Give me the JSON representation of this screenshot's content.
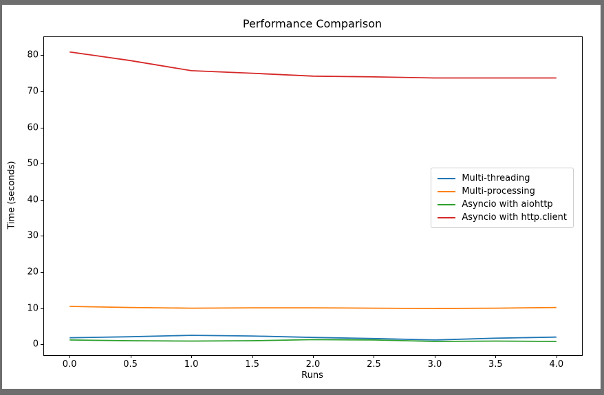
{
  "figure": {
    "background": "#ffffff",
    "frame_color": "#6e6e6e",
    "spine_color": "#000000"
  },
  "chart_data": {
    "type": "line",
    "title": "Performance Comparison",
    "xlabel": "Runs",
    "ylabel": "Time (seconds)",
    "grid": false,
    "legend_position": "center right",
    "xlim": [
      -0.21,
      4.21
    ],
    "ylim": [
      -3,
      85
    ],
    "xticks": {
      "values": [
        0,
        0.5,
        1,
        1.5,
        2,
        2.5,
        3,
        3.5,
        4
      ],
      "labels": [
        "0.0",
        "0.5",
        "1.0",
        "1.5",
        "2.0",
        "2.5",
        "3.0",
        "3.5",
        "4.0"
      ]
    },
    "yticks": {
      "values": [
        0,
        10,
        20,
        30,
        40,
        50,
        60,
        70,
        80
      ],
      "labels": [
        "0",
        "10",
        "20",
        "30",
        "40",
        "50",
        "60",
        "70",
        "80"
      ]
    },
    "x": [
      0.0,
      0.5,
      1.0,
      1.5,
      2.0,
      2.5,
      3.0,
      3.5,
      4.0
    ],
    "series": [
      {
        "name": "Multi-threading",
        "color": "#1f77b4",
        "values": [
          1.8,
          2.1,
          2.5,
          2.3,
          1.9,
          1.6,
          1.2,
          1.7,
          2.0
        ]
      },
      {
        "name": "Multi-processing",
        "color": "#ff7f0e",
        "values": [
          10.5,
          10.2,
          10.0,
          10.1,
          10.1,
          10.0,
          9.9,
          10.0,
          10.2
        ]
      },
      {
        "name": "Asyncio with aiohttp",
        "color": "#2ca02c",
        "values": [
          1.2,
          1.0,
          0.9,
          1.0,
          1.3,
          1.2,
          0.8,
          0.9,
          0.8
        ]
      },
      {
        "name": "Asyncio with http.client",
        "color": "#d62728",
        "values": [
          80.9,
          78.5,
          75.7,
          75.0,
          74.2,
          74.0,
          73.7,
          73.7,
          73.7
        ]
      }
    ]
  }
}
